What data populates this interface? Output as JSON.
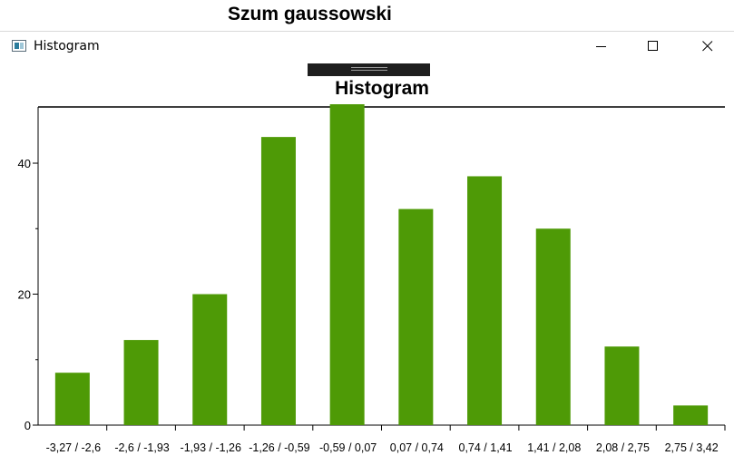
{
  "background_app": {
    "title": "Szum gaussowski"
  },
  "window": {
    "title": "Histogram",
    "controls": {
      "minimize": "minimize",
      "maximize": "maximize",
      "close": "close"
    }
  },
  "chart_data": {
    "type": "bar",
    "title": "Histogram",
    "categories": [
      "-3,27 / -2,6",
      "-2,6 / -1,93",
      "-1,93 / -1,26",
      "-1,26 / -0,59",
      "-0,59 / 0,07",
      "0,07 / 0,74",
      "0,74 / 1,41",
      "1,41 / 2,08",
      "2,08 / 2,75",
      "2,75 / 3,42"
    ],
    "values": [
      8,
      13,
      20,
      44,
      49,
      33,
      38,
      30,
      12,
      3
    ],
    "ylim": [
      0,
      49
    ],
    "yticks": [
      0,
      20,
      40
    ],
    "grid": false,
    "color": "#4e9a06"
  }
}
